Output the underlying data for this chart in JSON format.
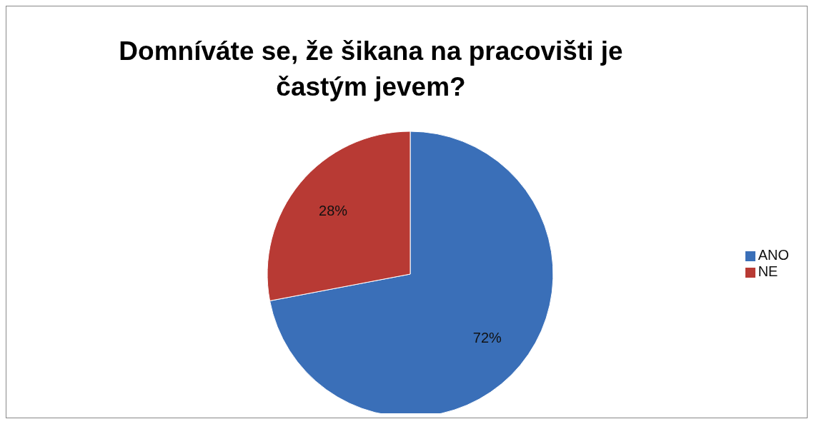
{
  "chart_data": {
    "type": "pie",
    "title": "Domníváte se, že šikana na pracovišti je častým jevem?",
    "categories": [
      "ANO",
      "NE"
    ],
    "values": [
      72,
      28
    ],
    "colors": [
      "#3a6fb8",
      "#b83a34"
    ],
    "value_labels": [
      "72%",
      "28%"
    ],
    "legend": "right"
  }
}
